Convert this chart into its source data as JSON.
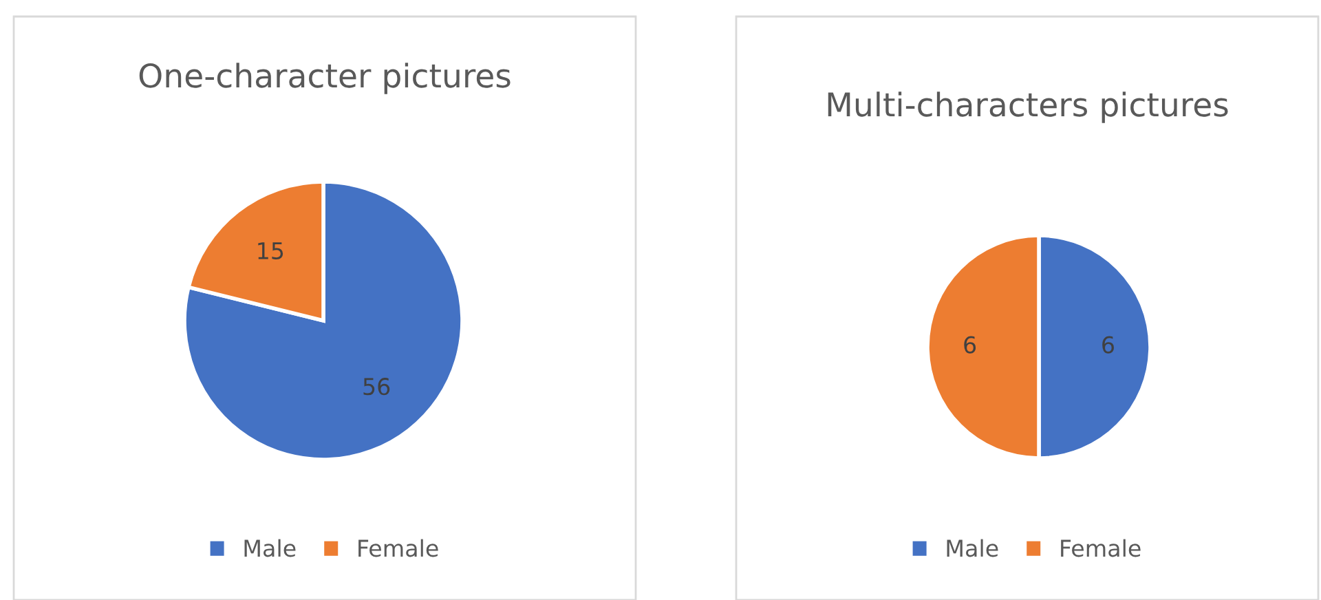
{
  "chart_data": [
    {
      "type": "pie",
      "title": "One-character pictures",
      "categories": [
        "Male",
        "Female"
      ],
      "values": [
        56,
        15
      ],
      "colors": [
        "#4472c4",
        "#ed7d31"
      ],
      "data_labels": true,
      "legend": "bottom"
    },
    {
      "type": "pie",
      "title": "Multi-characters pictures",
      "categories": [
        "Male",
        "Female"
      ],
      "values": [
        6,
        6
      ],
      "colors": [
        "#4472c4",
        "#ed7d31"
      ],
      "data_labels": true,
      "legend": "bottom"
    }
  ]
}
